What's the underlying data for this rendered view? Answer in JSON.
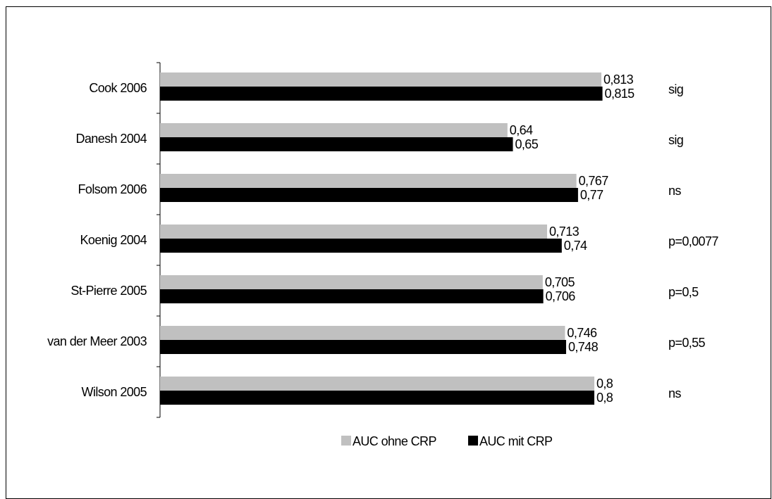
{
  "chart_data": {
    "type": "bar",
    "orientation": "horizontal",
    "categories": [
      "Cook 2006",
      "Danesh 2004",
      "Folsom 2006",
      "Koenig 2004",
      "St-Pierre 2005",
      "van der Meer 2003",
      "Wilson 2005"
    ],
    "series": [
      {
        "name": "AUC ohne CRP",
        "color": "#c0c0c0",
        "values": [
          0.813,
          0.64,
          0.767,
          0.713,
          0.705,
          0.746,
          0.8
        ],
        "labels": [
          "0,813",
          "0,64",
          "0,767",
          "0,713",
          "0,705",
          "0,746",
          "0,8"
        ]
      },
      {
        "name": "AUC mit CRP",
        "color": "#000000",
        "values": [
          0.815,
          0.65,
          0.77,
          0.74,
          0.706,
          0.748,
          0.8
        ],
        "labels": [
          "0,815",
          "0,65",
          "0,77",
          "0,74",
          "0,706",
          "0,748",
          "0,8"
        ]
      }
    ],
    "significance": [
      "sig",
      "sig",
      "ns",
      "p=0,0077",
      "p=0,5",
      "p=0,55",
      "ns"
    ],
    "xlim": [
      0,
      0.813
    ],
    "legend_position": "bottom",
    "grid": false
  }
}
